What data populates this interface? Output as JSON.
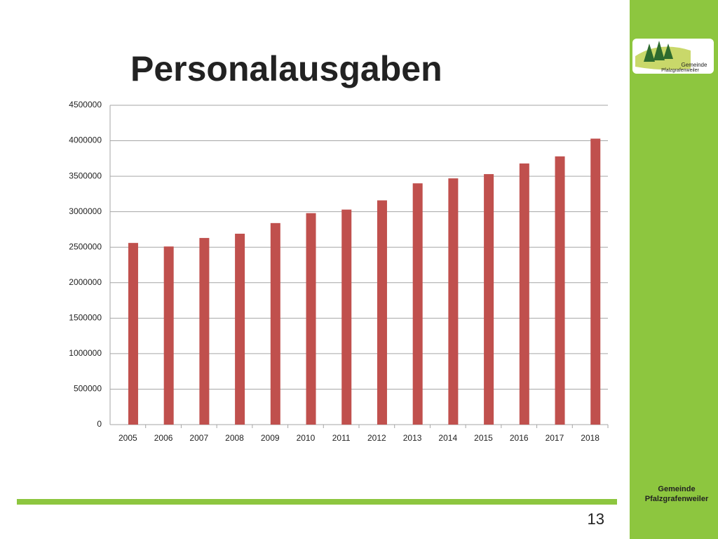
{
  "chart_data": {
    "type": "bar",
    "title": "Personalausgaben",
    "categories": [
      "2005",
      "2006",
      "2007",
      "2008",
      "2009",
      "2010",
      "2011",
      "2012",
      "2013",
      "2014",
      "2015",
      "2016",
      "2017",
      "2018"
    ],
    "values": [
      2560000,
      2510000,
      2630000,
      2690000,
      2840000,
      2980000,
      3030000,
      3160000,
      3400000,
      3470000,
      3530000,
      3680000,
      3780000,
      4030000
    ],
    "color": "#c0504d",
    "ylim": [
      0,
      4500000
    ],
    "yticks": [
      0,
      500000,
      1000000,
      1500000,
      2000000,
      2500000,
      3000000,
      3500000,
      4000000,
      4500000
    ],
    "grid": true
  },
  "logo": {
    "line1": "Gemeinde",
    "line2": "Pfalzgrafenweiler"
  },
  "footer": {
    "line1": "Gemeinde",
    "line2": "Pfalzgrafenweiler"
  },
  "page_number": 13
}
